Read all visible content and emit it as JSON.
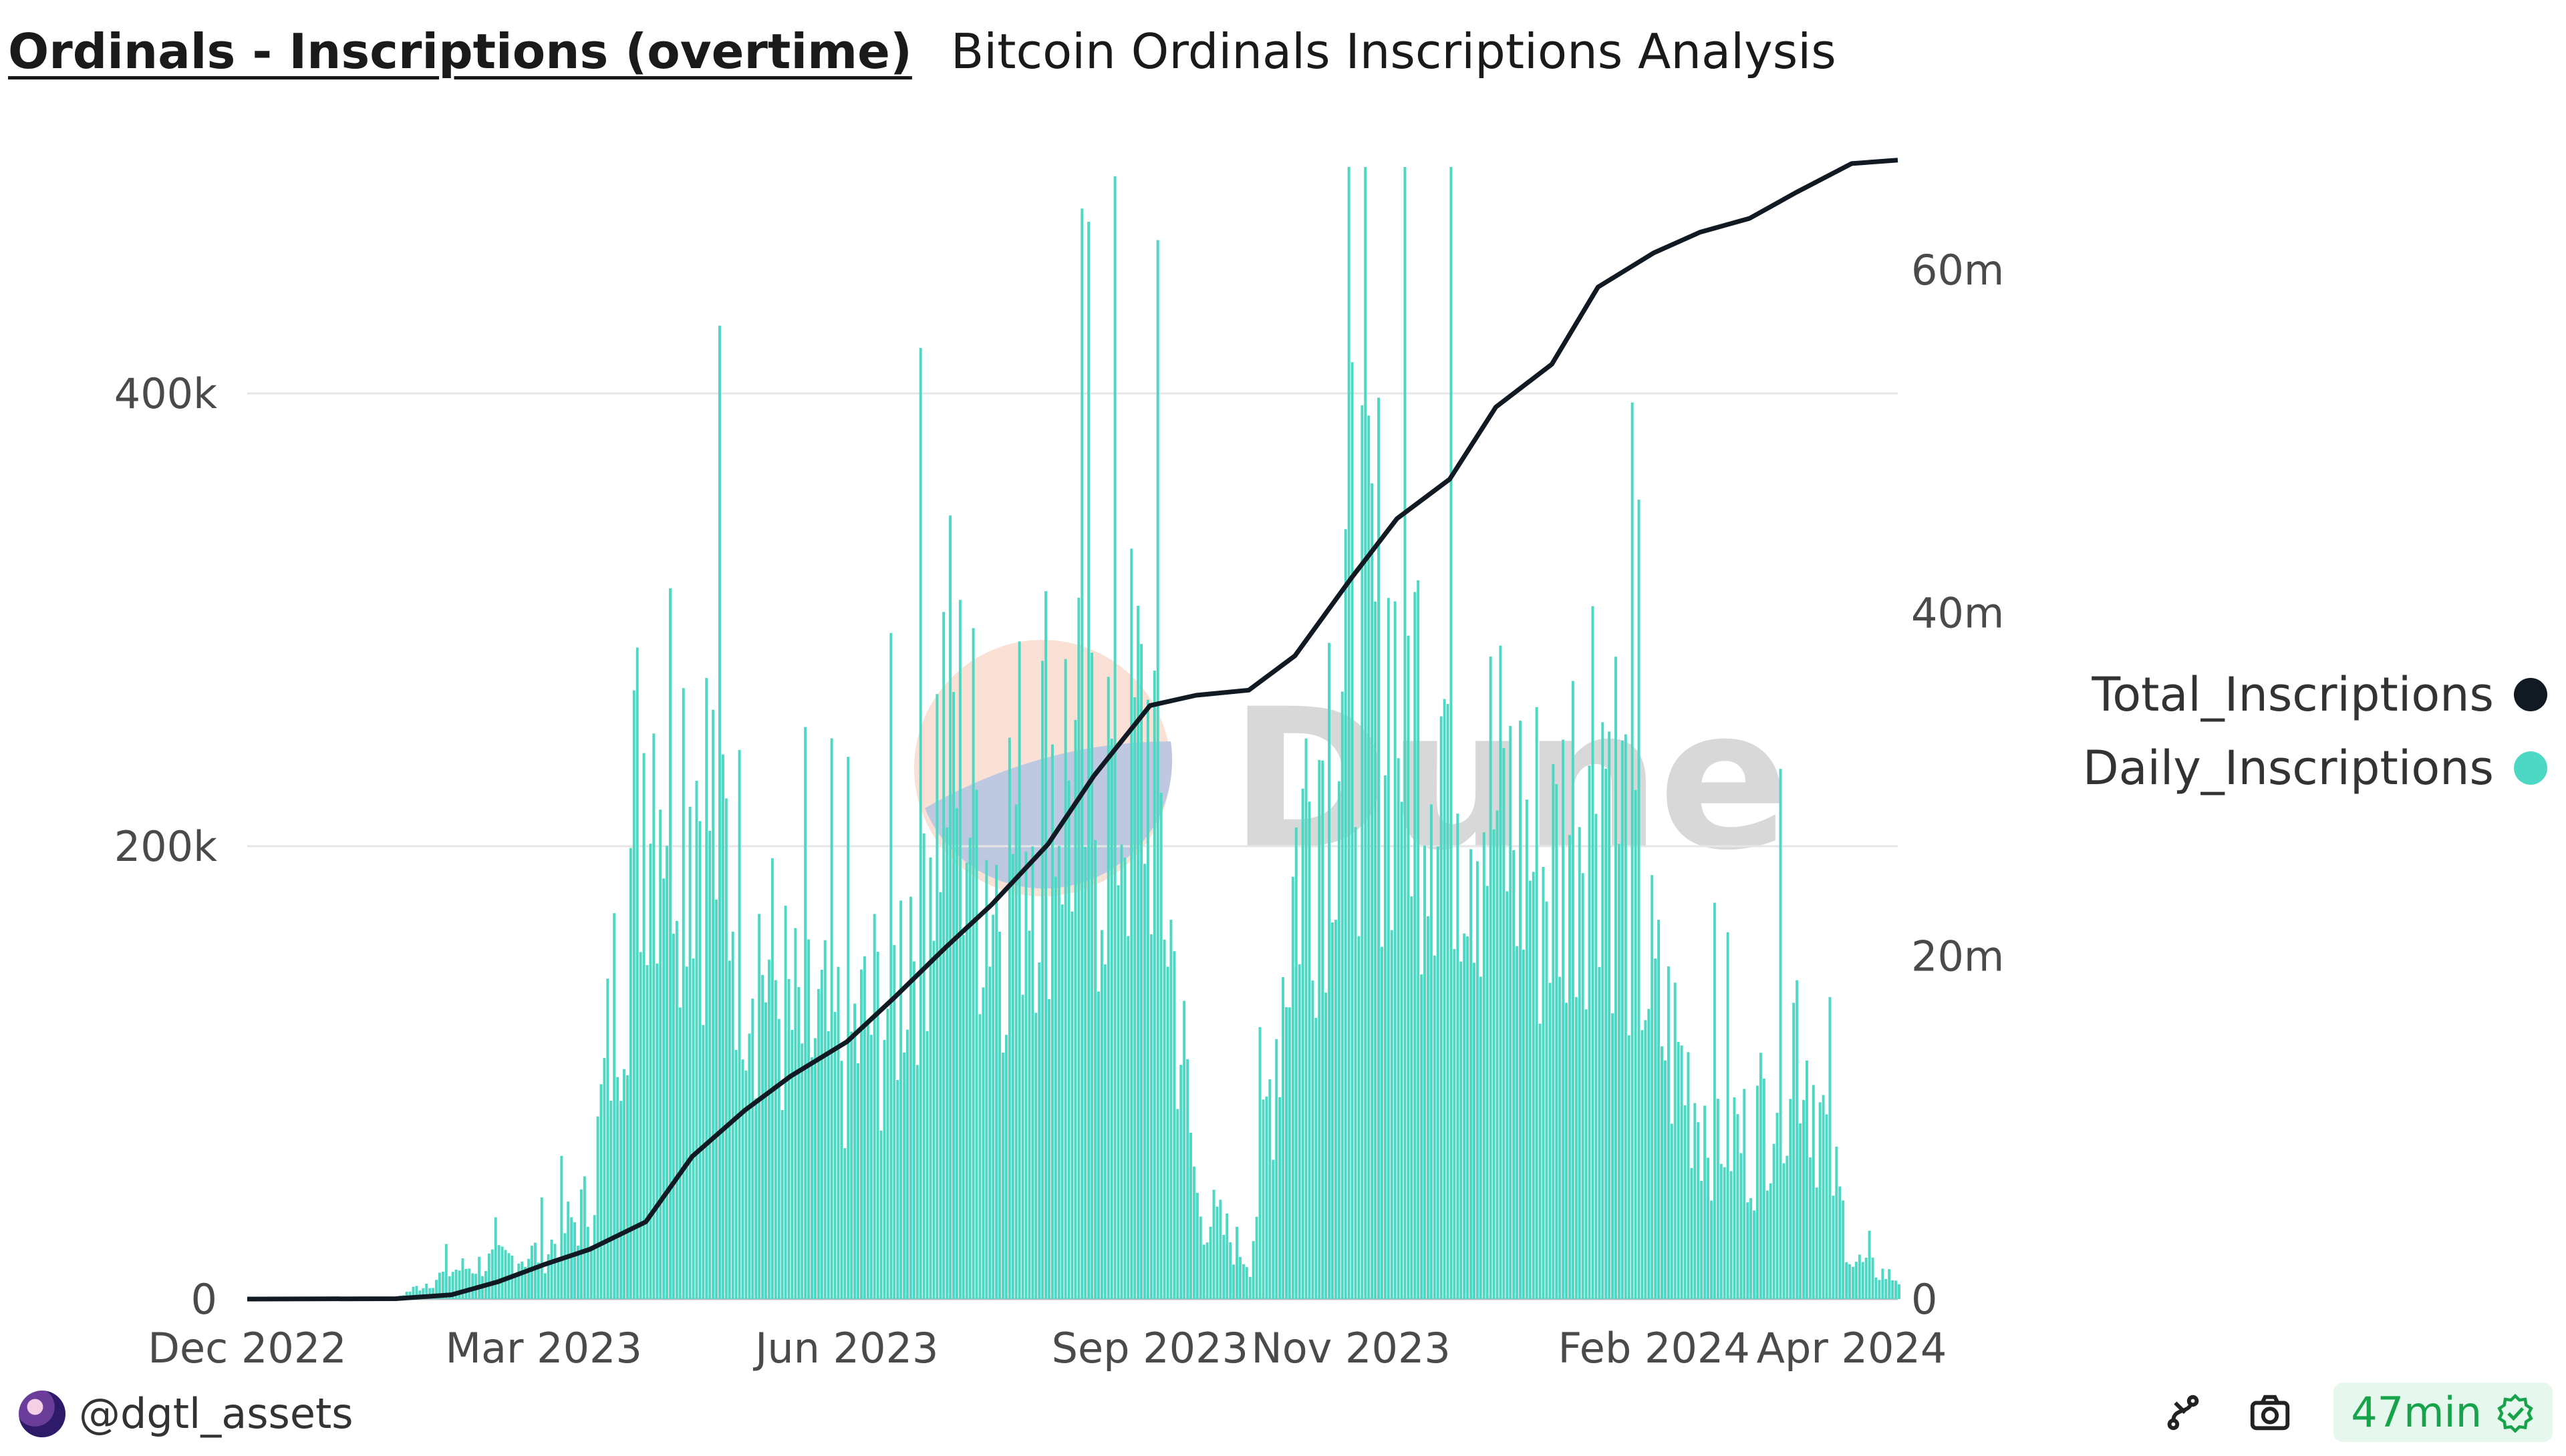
{
  "header": {
    "title": "Ordinals - Inscriptions (overtime)",
    "subtitle": "Bitcoin Ordinals Inscriptions Analysis"
  },
  "watermark": "Dune",
  "footer": {
    "author": "@dgtl_assets",
    "freshness": "47min"
  },
  "colors": {
    "daily": "#4dd8c4",
    "total": "#111a22",
    "freshness_green": "#16a34a"
  },
  "chart_data": {
    "type": "bar",
    "x_axis": {
      "ticks": [
        "Dec 2022",
        "Mar 2023",
        "Jun 2023",
        "Sep 2023",
        "Nov 2023",
        "Feb 2024",
        "Apr 2024"
      ]
    },
    "y_left": {
      "ticks": [
        "0",
        "200k",
        "400k"
      ],
      "range": [
        0,
        500000
      ]
    },
    "y_right": {
      "ticks": [
        "0",
        "20m",
        "40m",
        "60m"
      ],
      "range": [
        0,
        66000000
      ]
    },
    "grid": "horizontal",
    "legend_position": "right",
    "series": [
      {
        "name": "Total_Inscriptions",
        "type": "line",
        "axis": "right",
        "color": "#111a22",
        "points": [
          [
            "2022-12-01",
            0
          ],
          [
            "2023-01-15",
            20000
          ],
          [
            "2023-02-01",
            250000
          ],
          [
            "2023-02-15",
            1000000
          ],
          [
            "2023-03-01",
            2000000
          ],
          [
            "2023-03-15",
            2900000
          ],
          [
            "2023-04-01",
            4500000
          ],
          [
            "2023-04-15",
            8300000
          ],
          [
            "2023-05-01",
            11000000
          ],
          [
            "2023-05-15",
            13000000
          ],
          [
            "2023-06-01",
            15000000
          ],
          [
            "2023-06-15",
            17500000
          ],
          [
            "2023-07-01",
            20500000
          ],
          [
            "2023-07-15",
            23000000
          ],
          [
            "2023-08-01",
            26500000
          ],
          [
            "2023-08-15",
            30500000
          ],
          [
            "2023-09-01",
            34600000
          ],
          [
            "2023-09-15",
            35200000
          ],
          [
            "2023-10-01",
            35500000
          ],
          [
            "2023-10-15",
            37500000
          ],
          [
            "2023-11-01",
            42000000
          ],
          [
            "2023-11-15",
            45500000
          ],
          [
            "2023-12-01",
            47800000
          ],
          [
            "2023-12-15",
            52000000
          ],
          [
            "2024-01-01",
            54500000
          ],
          [
            "2024-01-15",
            59000000
          ],
          [
            "2024-02-01",
            61000000
          ],
          [
            "2024-02-15",
            62200000
          ],
          [
            "2024-03-01",
            63000000
          ],
          [
            "2024-03-15",
            64500000
          ],
          [
            "2024-04-01",
            66200000
          ],
          [
            "2024-04-15",
            66400000
          ]
        ]
      },
      {
        "name": "Daily_Inscriptions",
        "type": "bar",
        "axis": "left",
        "color": "#4dd8c4",
        "points": [
          [
            "2022-12-01",
            0
          ],
          [
            "2022-12-15",
            0
          ],
          [
            "2023-01-01",
            0
          ],
          [
            "2023-01-15",
            1000
          ],
          [
            "2023-02-01",
            15000
          ],
          [
            "2023-02-15",
            20000
          ],
          [
            "2023-03-01",
            25000
          ],
          [
            "2023-03-15",
            50000
          ],
          [
            "2023-04-01",
            300000
          ],
          [
            "2023-04-15",
            280000
          ],
          [
            "2023-05-01",
            200000
          ],
          [
            "2023-05-15",
            140000
          ],
          [
            "2023-06-01",
            130000
          ],
          [
            "2023-06-15",
            160000
          ],
          [
            "2023-07-01",
            300000
          ],
          [
            "2023-07-15",
            220000
          ],
          [
            "2023-08-01",
            280000
          ],
          [
            "2023-08-15",
            260000
          ],
          [
            "2023-09-01",
            290000
          ],
          [
            "2023-09-15",
            50000
          ],
          [
            "2023-10-01",
            20000
          ],
          [
            "2023-10-15",
            230000
          ],
          [
            "2023-11-01",
            360000
          ],
          [
            "2023-11-15",
            320000
          ],
          [
            "2023-12-01",
            300000
          ],
          [
            "2023-12-15",
            250000
          ],
          [
            "2024-01-01",
            220000
          ],
          [
            "2024-01-15",
            310000
          ],
          [
            "2024-02-01",
            150000
          ],
          [
            "2024-02-15",
            100000
          ],
          [
            "2024-03-01",
            80000
          ],
          [
            "2024-03-15",
            150000
          ],
          [
            "2024-04-01",
            20000
          ],
          [
            "2024-04-15",
            10000
          ]
        ]
      }
    ]
  }
}
